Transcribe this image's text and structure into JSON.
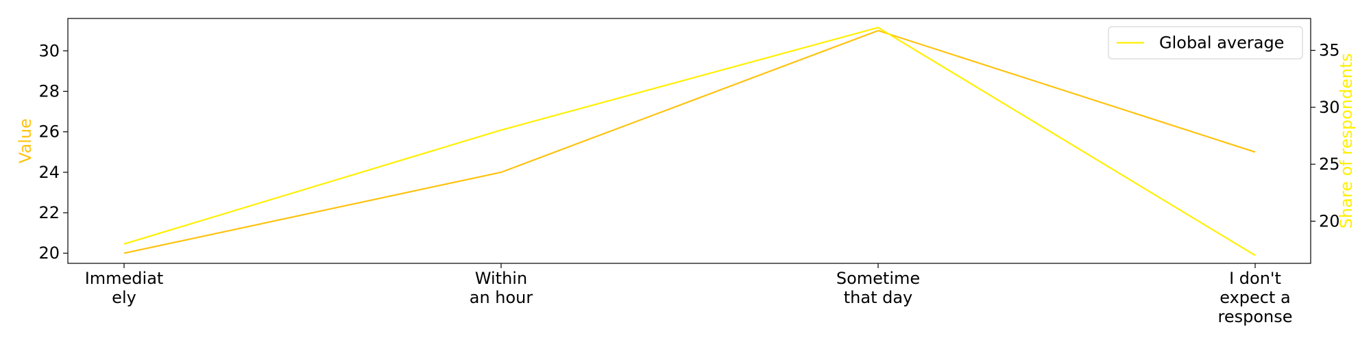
{
  "chart_data": {
    "type": "line",
    "categories": [
      [
        "Immediat",
        "ely"
      ],
      [
        "Within",
        "an hour"
      ],
      [
        "Sometime",
        "that day"
      ],
      [
        "I don't",
        "expect a",
        "response"
      ]
    ],
    "ylabel": "Value",
    "ylabel_right": "Share of respondents",
    "ylim": [
      19.5,
      31.6
    ],
    "ylim_right": [
      16.3,
      37.8
    ],
    "yticks": [
      "20",
      "22",
      "24",
      "26",
      "28",
      "30"
    ],
    "yticks_right": [
      "20",
      "25",
      "30",
      "35"
    ],
    "series": [
      {
        "axis": "left",
        "color": "#ffc20e",
        "values": [
          20,
          24,
          31,
          25
        ]
      },
      {
        "name": "Global average",
        "axis": "right",
        "color": "#ffef00",
        "values": [
          18,
          28,
          37,
          17
        ]
      }
    ],
    "legend": {
      "placement": "top-right"
    },
    "colors": {
      "axis": "#000000",
      "left_label": "#ffc20e",
      "right_label": "#ffef00"
    }
  }
}
